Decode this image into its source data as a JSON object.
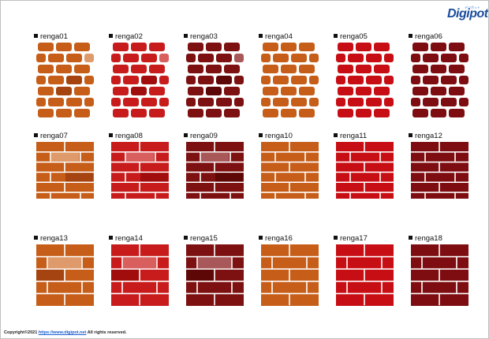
{
  "logo": {
    "text": "Digipot",
    "tagline": "デジポット"
  },
  "tiles": [
    {
      "label": "renga01",
      "style": "small",
      "base": "#c65e19",
      "mortar": "#ffffff",
      "highlight": "#de9a6a",
      "shadow": "#a54410"
    },
    {
      "label": "renga02",
      "style": "small",
      "base": "#c81c1c",
      "mortar": "#ffffff",
      "highlight": "#d95e5e",
      "shadow": "#a10d0d"
    },
    {
      "label": "renga03",
      "style": "small",
      "base": "#7d1010",
      "mortar": "#ffffff",
      "highlight": "#a85858",
      "shadow": "#5e0707"
    },
    {
      "label": "renga04",
      "style": "small",
      "base": "#c65e19",
      "mortar": "#ffffff",
      "highlight": "#c65e19",
      "shadow": "#c65e19"
    },
    {
      "label": "renga05",
      "style": "small",
      "base": "#c80e15",
      "mortar": "#ffffff",
      "highlight": "#c80e15",
      "shadow": "#c80e15"
    },
    {
      "label": "renga06",
      "style": "small",
      "base": "#7d0d10",
      "mortar": "#ffffff",
      "highlight": "#7d0d10",
      "shadow": "#7d0d10"
    },
    {
      "label": "renga07",
      "style": "wide",
      "base": "#c65e19",
      "mortar": "#ffffff",
      "highlight": "#de9a6a",
      "shadow": "#a54410"
    },
    {
      "label": "renga08",
      "style": "wide",
      "base": "#c81c1c",
      "mortar": "#ffffff",
      "highlight": "#d95e5e",
      "shadow": "#a10d0d"
    },
    {
      "label": "renga09",
      "style": "wide",
      "base": "#7d1010",
      "mortar": "#ffffff",
      "highlight": "#a85858",
      "shadow": "#5e0707"
    },
    {
      "label": "renga10",
      "style": "wide",
      "base": "#c65e19",
      "mortar": "#ffffff",
      "highlight": "#c65e19",
      "shadow": "#c65e19"
    },
    {
      "label": "renga11",
      "style": "wide",
      "base": "#c80e15",
      "mortar": "#ffffff",
      "highlight": "#c80e15",
      "shadow": "#c80e15"
    },
    {
      "label": "renga12",
      "style": "wide",
      "base": "#7d0d10",
      "mortar": "#ffffff",
      "highlight": "#7d0d10",
      "shadow": "#7d0d10"
    },
    {
      "label": "renga13",
      "style": "large",
      "base": "#c65e19",
      "mortar": "#ffffff",
      "highlight": "#de9a6a",
      "shadow": "#a54410"
    },
    {
      "label": "renga14",
      "style": "large",
      "base": "#c81c1c",
      "mortar": "#ffffff",
      "highlight": "#d95e5e",
      "shadow": "#a10d0d"
    },
    {
      "label": "renga15",
      "style": "large",
      "base": "#7d1010",
      "mortar": "#ffffff",
      "highlight": "#a85858",
      "shadow": "#5e0707"
    },
    {
      "label": "renga16",
      "style": "large",
      "base": "#c65e19",
      "mortar": "#ffffff",
      "highlight": "#c65e19",
      "shadow": "#c65e19"
    },
    {
      "label": "renga17",
      "style": "large",
      "base": "#c80e15",
      "mortar": "#ffffff",
      "highlight": "#c80e15",
      "shadow": "#c80e15"
    },
    {
      "label": "renga18",
      "style": "large",
      "base": "#7d0d10",
      "mortar": "#ffffff",
      "highlight": "#7d0d10",
      "shadow": "#7d0d10"
    }
  ],
  "footer": {
    "copyright": "Copyright©2021 ",
    "link_text": "https://www.digipot.net",
    "rights": " All rights reserved."
  }
}
